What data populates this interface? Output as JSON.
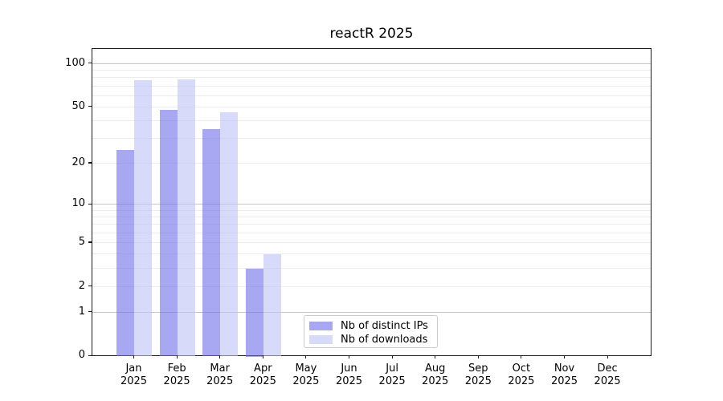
{
  "chart_data": {
    "type": "bar",
    "title": "reactR 2025",
    "categories": [
      "Jan",
      "Feb",
      "Mar",
      "Apr",
      "May",
      "Jun",
      "Jul",
      "Aug",
      "Sep",
      "Oct",
      "Nov",
      "Dec"
    ],
    "x_year_label": "2025",
    "series": [
      {
        "name": "Nb of distinct IPs",
        "color": "#a8a8f2",
        "fill_rgba": "rgba(110,110,233,0.6)",
        "values": [
          25,
          48,
          35,
          3,
          0,
          0,
          0,
          0,
          0,
          0,
          0,
          0
        ]
      },
      {
        "name": "Nb of downloads",
        "color": "#d9dbfa",
        "fill_rgba": "rgba(190,193,247,0.6)",
        "values": [
          77,
          78,
          46,
          4,
          0,
          0,
          0,
          0,
          0,
          0,
          0,
          0
        ]
      }
    ],
    "yscale": "log1p",
    "ylim": [
      0,
      127
    ],
    "y_tick_labels": [
      100,
      50,
      20,
      10,
      5,
      2,
      1,
      0
    ],
    "y_major_gridlines": [
      1,
      10,
      100
    ],
    "y_minor_gridlines": [
      2,
      3,
      4,
      5,
      6,
      7,
      8,
      9,
      20,
      30,
      40,
      50,
      60,
      70,
      80,
      90
    ],
    "grid": true,
    "legend": {
      "position": "lower center"
    },
    "colors": {
      "major_grid": "#c7c7c7",
      "minor_grid": "#ececec",
      "spine": "#1a1a1a",
      "text": "#000000",
      "background": "#ffffff"
    }
  }
}
